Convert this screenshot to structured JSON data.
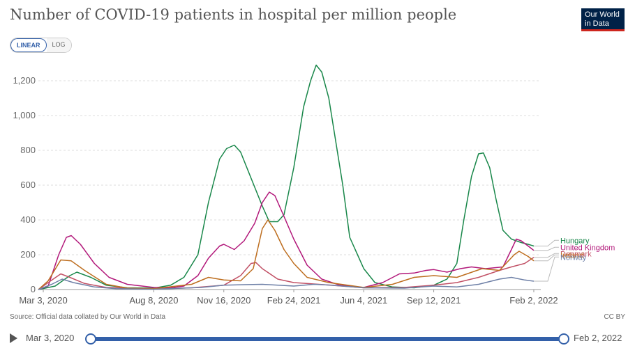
{
  "header": {
    "title": "Number of COVID-19 patients in hospital per million people",
    "logo_line1": "Our World",
    "logo_line2": "in Data"
  },
  "controls": {
    "linear_label": "LINEAR",
    "log_label": "LOG"
  },
  "footer": {
    "source": "Source: Official data collated by Our World in Data",
    "license": "CC BY"
  },
  "timeline": {
    "start": "Mar 3, 2020",
    "end": "Feb 2, 2022"
  },
  "chart_data": {
    "type": "line",
    "title": "Number of COVID-19 patients in hospital per million people",
    "xlabel": "",
    "ylabel": "",
    "x_range": [
      "2020-02-25",
      "2022-02-12"
    ],
    "ylim": [
      0,
      1300
    ],
    "y_ticks": [
      0,
      200,
      400,
      600,
      800,
      1000,
      1200
    ],
    "y_tick_labels": [
      "0",
      "200",
      "400",
      "600",
      "800",
      "1,000",
      "1,200"
    ],
    "x_ticks": [
      "2020-03-03",
      "2020-08-08",
      "2020-11-16",
      "2021-02-24",
      "2021-06-04",
      "2021-09-12",
      "2022-02-02"
    ],
    "x_tick_labels": [
      "Mar 3, 2020",
      "Aug 8, 2020",
      "Nov 16, 2020",
      "Feb 24, 2021",
      "Jun 4, 2021",
      "Sep 12, 2021",
      "Feb 2, 2022"
    ],
    "grid": "horizontal dashed",
    "legend": "right end labels",
    "series": [
      {
        "name": "Hungary",
        "color": "#19874a",
        "label_y": 283,
        "points": [
          [
            "2020-02-25",
            0
          ],
          [
            "2020-03-20",
            20
          ],
          [
            "2020-04-10",
            80
          ],
          [
            "2020-04-20",
            100
          ],
          [
            "2020-05-10",
            70
          ],
          [
            "2020-06-01",
            25
          ],
          [
            "2020-07-01",
            10
          ],
          [
            "2020-08-08",
            8
          ],
          [
            "2020-09-01",
            25
          ],
          [
            "2020-09-20",
            70
          ],
          [
            "2020-10-10",
            200
          ],
          [
            "2020-10-25",
            500
          ],
          [
            "2020-11-10",
            750
          ],
          [
            "2020-11-20",
            810
          ],
          [
            "2020-12-01",
            830
          ],
          [
            "2020-12-10",
            790
          ],
          [
            "2020-12-25",
            640
          ],
          [
            "2021-01-10",
            480
          ],
          [
            "2021-01-20",
            390
          ],
          [
            "2021-02-01",
            390
          ],
          [
            "2021-02-10",
            430
          ],
          [
            "2021-02-24",
            700
          ],
          [
            "2021-03-10",
            1050
          ],
          [
            "2021-03-20",
            1200
          ],
          [
            "2021-03-28",
            1290
          ],
          [
            "2021-04-05",
            1250
          ],
          [
            "2021-04-15",
            1100
          ],
          [
            "2021-04-25",
            850
          ],
          [
            "2021-05-05",
            600
          ],
          [
            "2021-05-15",
            300
          ],
          [
            "2021-06-04",
            120
          ],
          [
            "2021-06-20",
            40
          ],
          [
            "2021-07-15",
            15
          ],
          [
            "2021-08-15",
            10
          ],
          [
            "2021-09-12",
            25
          ],
          [
            "2021-10-01",
            60
          ],
          [
            "2021-10-15",
            150
          ],
          [
            "2021-10-25",
            400
          ],
          [
            "2021-11-05",
            650
          ],
          [
            "2021-11-15",
            780
          ],
          [
            "2021-11-22",
            785
          ],
          [
            "2021-12-01",
            700
          ],
          [
            "2021-12-10",
            520
          ],
          [
            "2021-12-20",
            340
          ],
          [
            "2022-01-01",
            290
          ],
          [
            "2022-01-15",
            270
          ],
          [
            "2022-01-25",
            260
          ],
          [
            "2022-02-02",
            250
          ]
        ]
      },
      {
        "name": "United Kingdom",
        "color": "#b2187a",
        "label_y": 243,
        "points": [
          [
            "2020-02-25",
            0
          ],
          [
            "2020-03-10",
            20
          ],
          [
            "2020-03-25",
            200
          ],
          [
            "2020-04-05",
            300
          ],
          [
            "2020-04-12",
            310
          ],
          [
            "2020-04-25",
            260
          ],
          [
            "2020-05-15",
            150
          ],
          [
            "2020-06-05",
            70
          ],
          [
            "2020-07-01",
            30
          ],
          [
            "2020-08-08",
            12
          ],
          [
            "2020-09-01",
            10
          ],
          [
            "2020-09-20",
            20
          ],
          [
            "2020-10-10",
            80
          ],
          [
            "2020-10-25",
            180
          ],
          [
            "2020-11-10",
            250
          ],
          [
            "2020-11-16",
            260
          ],
          [
            "2020-12-01",
            230
          ],
          [
            "2020-12-15",
            280
          ],
          [
            "2020-12-30",
            380
          ],
          [
            "2021-01-10",
            500
          ],
          [
            "2021-01-20",
            560
          ],
          [
            "2021-01-28",
            540
          ],
          [
            "2021-02-10",
            420
          ],
          [
            "2021-02-24",
            290
          ],
          [
            "2021-03-15",
            140
          ],
          [
            "2021-04-05",
            60
          ],
          [
            "2021-05-01",
            25
          ],
          [
            "2021-06-04",
            12
          ],
          [
            "2021-07-01",
            40
          ],
          [
            "2021-07-25",
            90
          ],
          [
            "2021-08-15",
            95
          ],
          [
            "2021-09-01",
            110
          ],
          [
            "2021-09-12",
            115
          ],
          [
            "2021-10-01",
            100
          ],
          [
            "2021-10-20",
            120
          ],
          [
            "2021-11-05",
            130
          ],
          [
            "2021-11-25",
            120
          ],
          [
            "2021-12-20",
            130
          ],
          [
            "2022-01-01",
            230
          ],
          [
            "2022-01-08",
            290
          ],
          [
            "2022-01-15",
            280
          ],
          [
            "2022-01-25",
            250
          ],
          [
            "2022-02-02",
            225
          ]
        ]
      },
      {
        "name": "Denmark",
        "color": "#c15065",
        "label_y": 207,
        "points": [
          [
            "2020-02-25",
            0
          ],
          [
            "2020-03-10",
            40
          ],
          [
            "2020-03-28",
            90
          ],
          [
            "2020-04-10",
            70
          ],
          [
            "2020-05-01",
            35
          ],
          [
            "2020-06-01",
            12
          ],
          [
            "2020-08-08",
            3
          ],
          [
            "2020-10-01",
            10
          ],
          [
            "2020-11-16",
            25
          ],
          [
            "2020-12-10",
            80
          ],
          [
            "2020-12-25",
            150
          ],
          [
            "2021-01-01",
            155
          ],
          [
            "2021-01-10",
            120
          ],
          [
            "2021-02-01",
            60
          ],
          [
            "2021-02-24",
            40
          ],
          [
            "2021-04-01",
            30
          ],
          [
            "2021-06-04",
            10
          ],
          [
            "2021-08-01",
            12
          ],
          [
            "2021-09-12",
            25
          ],
          [
            "2021-10-15",
            40
          ],
          [
            "2021-11-15",
            70
          ],
          [
            "2021-12-15",
            110
          ],
          [
            "2022-01-01",
            130
          ],
          [
            "2022-01-20",
            150
          ],
          [
            "2022-02-02",
            185
          ]
        ]
      },
      {
        "name": "Ireland",
        "color": "#bd6d1e",
        "label_y": 199,
        "points": [
          [
            "2020-02-25",
            0
          ],
          [
            "2020-03-10",
            50
          ],
          [
            "2020-03-28",
            170
          ],
          [
            "2020-04-12",
            165
          ],
          [
            "2020-05-01",
            110
          ],
          [
            "2020-06-01",
            30
          ],
          [
            "2020-07-01",
            8
          ],
          [
            "2020-08-08",
            5
          ],
          [
            "2020-10-01",
            30
          ],
          [
            "2020-10-25",
            70
          ],
          [
            "2020-11-16",
            55
          ],
          [
            "2020-12-10",
            50
          ],
          [
            "2020-12-28",
            120
          ],
          [
            "2021-01-10",
            350
          ],
          [
            "2021-01-18",
            400
          ],
          [
            "2021-01-28",
            340
          ],
          [
            "2021-02-10",
            230
          ],
          [
            "2021-02-24",
            150
          ],
          [
            "2021-03-15",
            70
          ],
          [
            "2021-04-15",
            40
          ],
          [
            "2021-06-04",
            12
          ],
          [
            "2021-07-15",
            30
          ],
          [
            "2021-08-15",
            70
          ],
          [
            "2021-09-12",
            80
          ],
          [
            "2021-10-15",
            70
          ],
          [
            "2021-11-20",
            120
          ],
          [
            "2021-12-15",
            110
          ],
          [
            "2022-01-05",
            200
          ],
          [
            "2022-01-12",
            220
          ],
          [
            "2022-01-25",
            190
          ],
          [
            "2022-02-02",
            165
          ]
        ]
      },
      {
        "name": "Norway",
        "color": "#6d7fa6",
        "label_y": 187,
        "points": [
          [
            "2020-02-25",
            0
          ],
          [
            "2020-03-15",
            30
          ],
          [
            "2020-03-30",
            60
          ],
          [
            "2020-04-15",
            40
          ],
          [
            "2020-05-15",
            15
          ],
          [
            "2020-06-15",
            5
          ],
          [
            "2020-08-08",
            2
          ],
          [
            "2020-10-15",
            12
          ],
          [
            "2020-11-16",
            25
          ],
          [
            "2020-12-15",
            28
          ],
          [
            "2021-01-10",
            30
          ],
          [
            "2021-02-24",
            20
          ],
          [
            "2021-03-25",
            30
          ],
          [
            "2021-04-20",
            25
          ],
          [
            "2021-06-04",
            10
          ],
          [
            "2021-08-01",
            8
          ],
          [
            "2021-09-12",
            20
          ],
          [
            "2021-10-15",
            15
          ],
          [
            "2021-11-15",
            30
          ],
          [
            "2021-12-15",
            60
          ],
          [
            "2022-01-01",
            70
          ],
          [
            "2022-01-20",
            55
          ],
          [
            "2022-02-02",
            48
          ]
        ]
      }
    ]
  }
}
